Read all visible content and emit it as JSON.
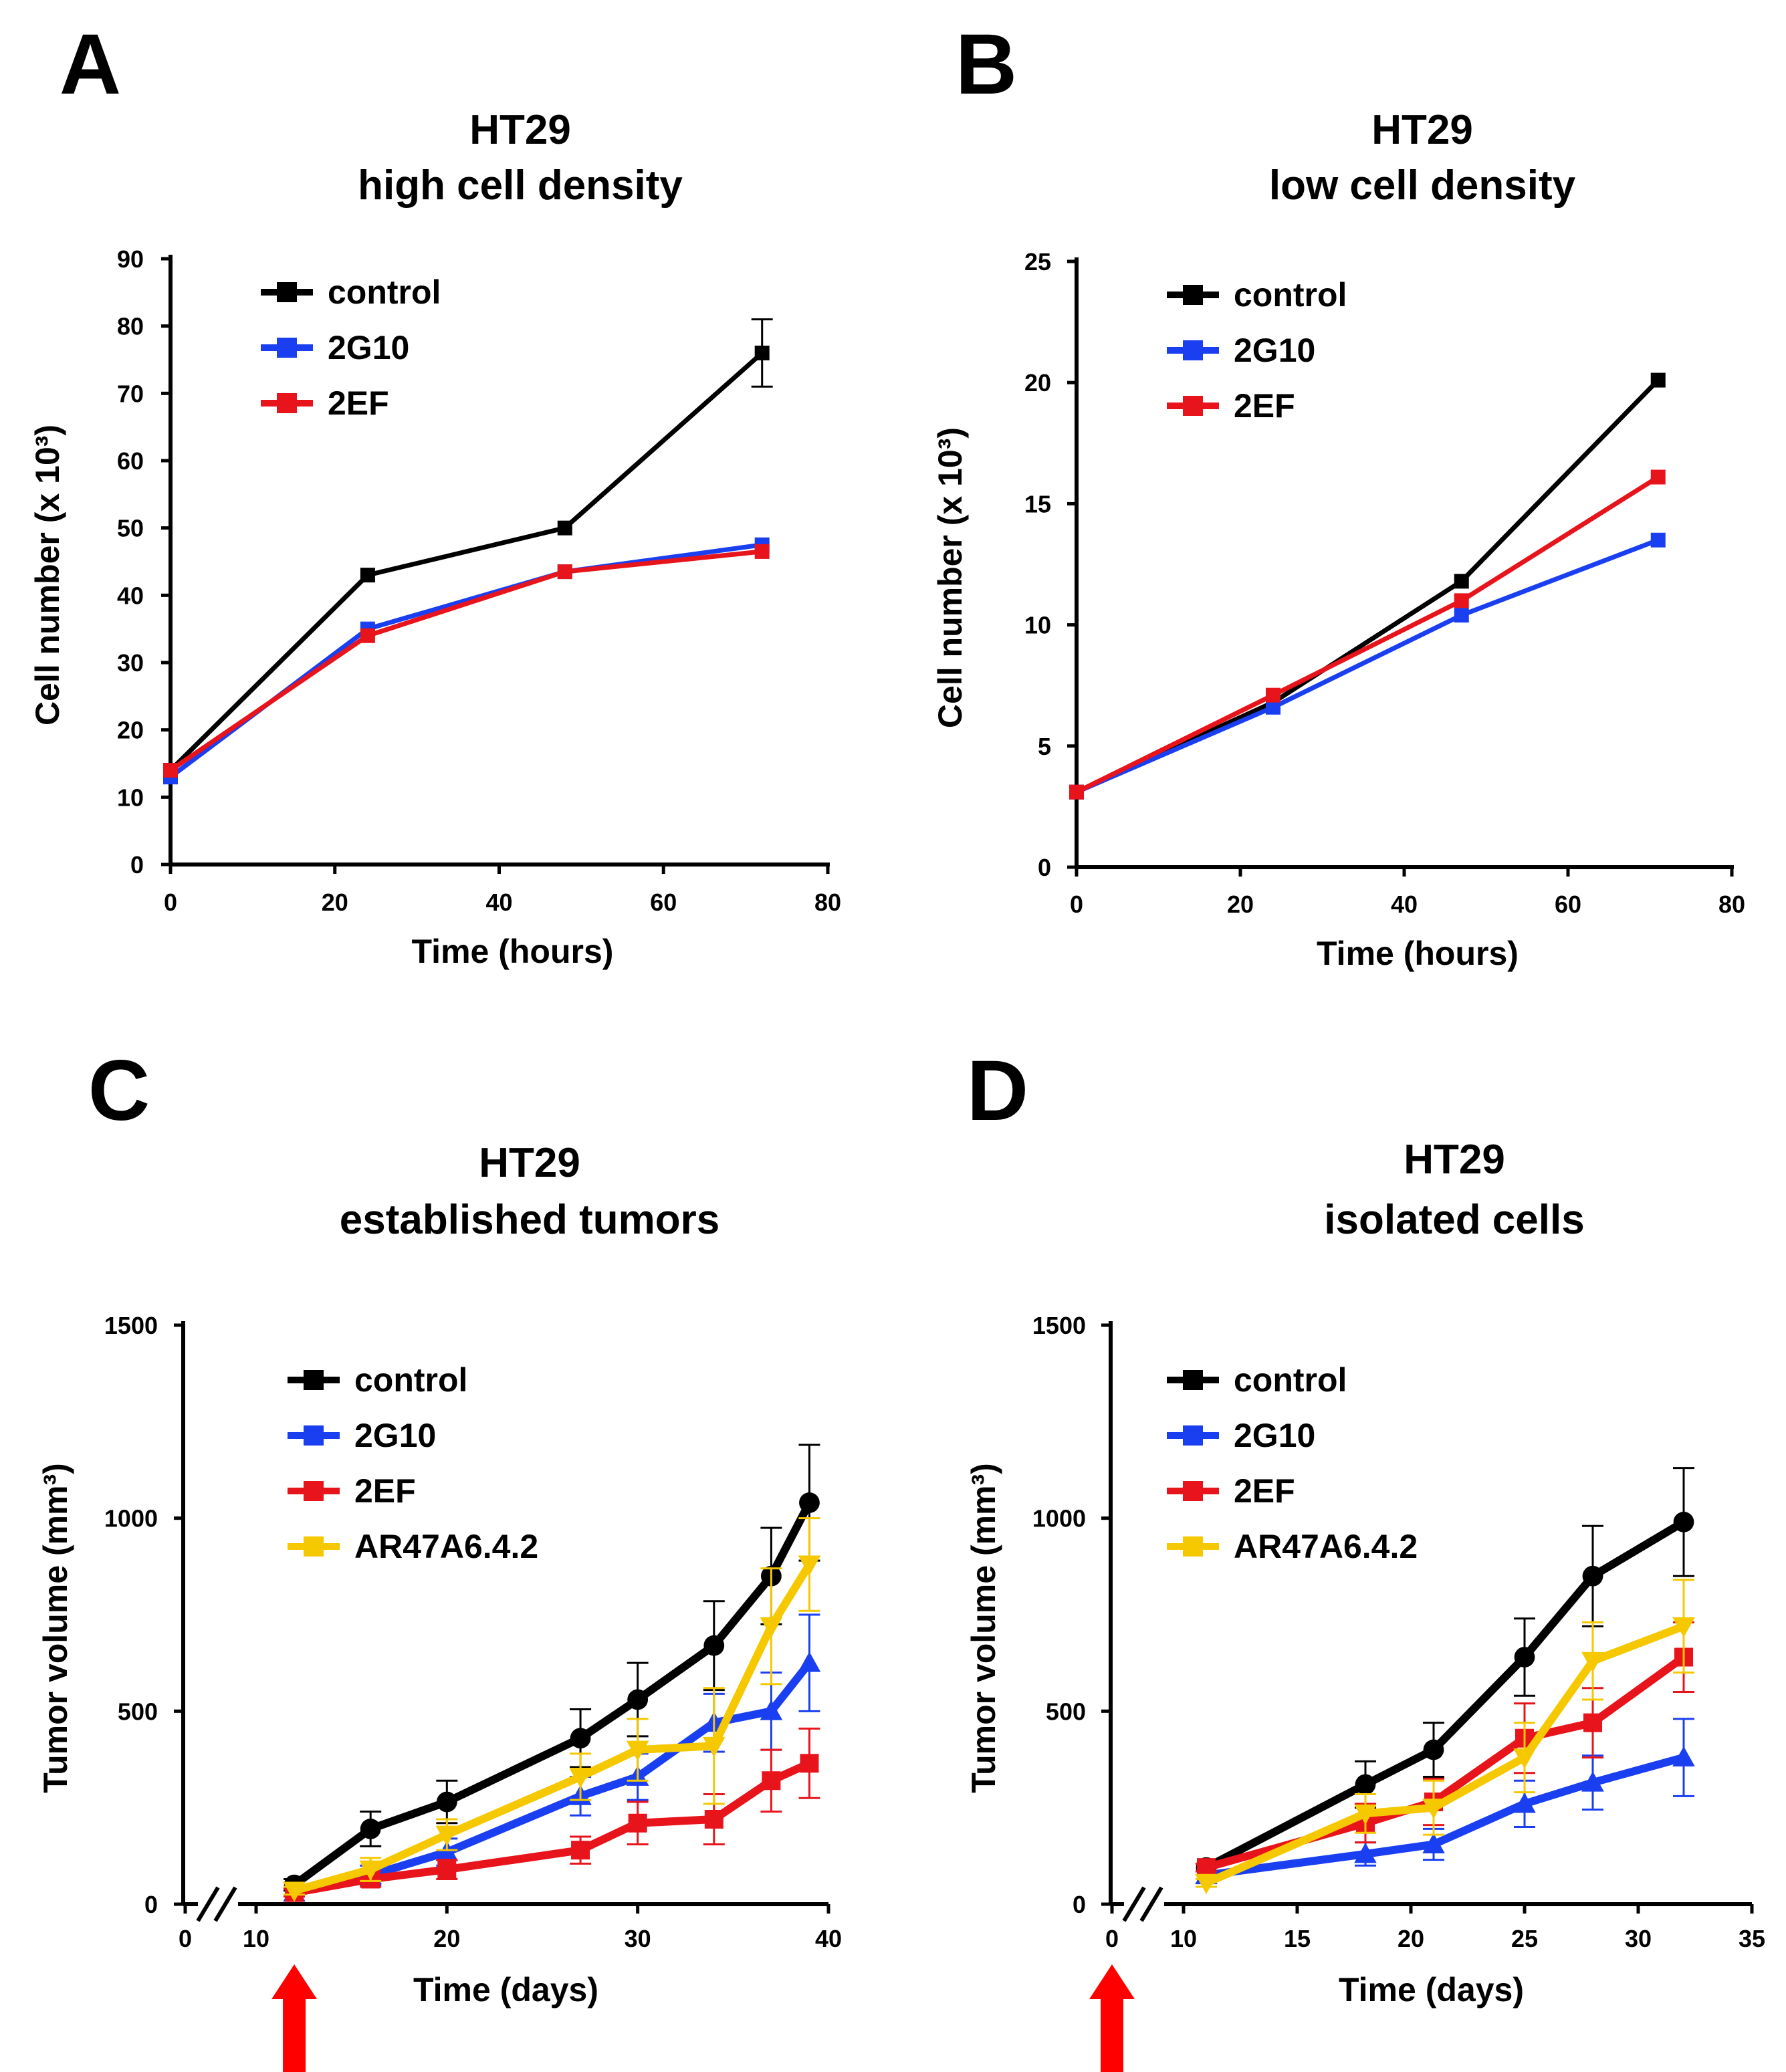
{
  "chart_data": [
    {
      "panel": "A",
      "type": "line",
      "title": "HT29",
      "subtitle": "high cell density",
      "xlabel": "Time (hours)",
      "ylabel": "Cell number (x 10³)",
      "xlim": [
        0,
        80
      ],
      "ylim": [
        0,
        90
      ],
      "xticks": [
        0,
        20,
        40,
        60,
        80
      ],
      "yticks": [
        0,
        10,
        20,
        30,
        40,
        50,
        60,
        70,
        80,
        90
      ],
      "legend": "top-left",
      "series": [
        {
          "name": "control",
          "color": "#000000",
          "marker": "square",
          "x": [
            0,
            24,
            48,
            72
          ],
          "y": [
            14,
            43,
            50,
            76
          ],
          "err": [
            0,
            0,
            0,
            5
          ]
        },
        {
          "name": "2G10",
          "color": "#1a3ff0",
          "marker": "square",
          "x": [
            0,
            24,
            48,
            72
          ],
          "y": [
            13,
            35,
            43.5,
            47.5
          ],
          "err": [
            0,
            0,
            0,
            0
          ]
        },
        {
          "name": "2EF",
          "color": "#e8141c",
          "marker": "square",
          "x": [
            0,
            24,
            48,
            72
          ],
          "y": [
            14,
            34,
            43.5,
            46.5
          ],
          "err": [
            0,
            0,
            0,
            0
          ]
        }
      ]
    },
    {
      "panel": "B",
      "type": "line",
      "title": "HT29",
      "subtitle": "low cell density",
      "xlabel": "Time (hours)",
      "ylabel": "Cell number (x 10³)",
      "xlim": [
        0,
        80
      ],
      "ylim": [
        0,
        25
      ],
      "xticks": [
        0,
        20,
        40,
        60,
        80
      ],
      "yticks": [
        0,
        5,
        10,
        15,
        20,
        25
      ],
      "legend": "top-left",
      "series": [
        {
          "name": "control",
          "color": "#000000",
          "marker": "square",
          "x": [
            0,
            24,
            47,
            71
          ],
          "y": [
            3.1,
            6.8,
            11.8,
            20.1
          ],
          "err": [
            0,
            0,
            0,
            0
          ]
        },
        {
          "name": "2G10",
          "color": "#1a3ff0",
          "marker": "square",
          "x": [
            0,
            24,
            47,
            71
          ],
          "y": [
            3.1,
            6.6,
            10.4,
            13.5
          ],
          "err": [
            0,
            0,
            0,
            0
          ]
        },
        {
          "name": "2EF",
          "color": "#e8141c",
          "marker": "square",
          "x": [
            0,
            24,
            47,
            71
          ],
          "y": [
            3.1,
            7.1,
            11.0,
            16.1
          ],
          "err": [
            0,
            0,
            0,
            0
          ]
        }
      ]
    },
    {
      "panel": "C",
      "type": "line",
      "title": "HT29",
      "subtitle": "established tumors",
      "xlabel": "Time (days)",
      "ylabel": "Tumor volume (mm³)",
      "xlim": [
        10,
        40
      ],
      "ylim": [
        0,
        1500
      ],
      "xticks": [
        10,
        20,
        30,
        40
      ],
      "xticks_broken": [
        "0"
      ],
      "yticks": [
        0,
        500,
        1000,
        1500
      ],
      "legend": "top-left",
      "arrow_at_x": 12,
      "series": [
        {
          "name": "control",
          "color": "#000000",
          "marker": "circle",
          "x": [
            12,
            16,
            20,
            27,
            30,
            34,
            37,
            39
          ],
          "y": [
            50,
            195,
            265,
            430,
            530,
            670,
            850,
            1040
          ],
          "err": [
            15,
            45,
            55,
            75,
            95,
            115,
            125,
            150
          ]
        },
        {
          "name": "2G10",
          "color": "#1a3ff0",
          "marker": "triangle",
          "x": [
            12,
            16,
            20,
            27,
            30,
            34,
            37,
            39
          ],
          "y": [
            30,
            75,
            135,
            280,
            330,
            470,
            500,
            625
          ],
          "err": [
            10,
            25,
            35,
            50,
            60,
            75,
            100,
            125
          ]
        },
        {
          "name": "2EF",
          "color": "#e8141c",
          "marker": "square",
          "x": [
            12,
            16,
            20,
            27,
            30,
            34,
            37,
            39
          ],
          "y": [
            30,
            65,
            90,
            140,
            210,
            220,
            320,
            365
          ],
          "err": [
            10,
            20,
            25,
            35,
            55,
            65,
            80,
            90
          ]
        },
        {
          "name": "AR47A6.4.2",
          "color": "#f5c800",
          "marker": "triangle-down",
          "x": [
            12,
            16,
            20,
            27,
            30,
            34,
            37,
            39
          ],
          "y": [
            35,
            90,
            180,
            330,
            400,
            410,
            720,
            880
          ],
          "err": [
            10,
            30,
            40,
            60,
            80,
            150,
            150,
            120
          ]
        }
      ]
    },
    {
      "panel": "D",
      "type": "line",
      "title": "HT29",
      "subtitle": "isolated cells",
      "xlabel": "Time (days)",
      "ylabel": "Tumor volume (mm³)",
      "xlim": [
        10,
        35
      ],
      "ylim": [
        0,
        1500
      ],
      "xticks": [
        10,
        15,
        20,
        25,
        30,
        35
      ],
      "xticks_broken": [
        "0"
      ],
      "yticks": [
        0,
        500,
        1000,
        1500
      ],
      "legend": "top-left",
      "arrow_at_x": 0,
      "series": [
        {
          "name": "control",
          "color": "#000000",
          "marker": "circle",
          "x": [
            11,
            18,
            21,
            25,
            28,
            32
          ],
          "y": [
            95,
            310,
            400,
            640,
            850,
            990
          ],
          "err": [
            10,
            60,
            70,
            100,
            130,
            140
          ]
        },
        {
          "name": "2G10",
          "color": "#1a3ff0",
          "marker": "triangle",
          "x": [
            11,
            18,
            21,
            25,
            28,
            32
          ],
          "y": [
            75,
            130,
            155,
            260,
            315,
            380
          ],
          "err": [
            10,
            30,
            40,
            60,
            70,
            100
          ]
        },
        {
          "name": "2EF",
          "color": "#e8141c",
          "marker": "square",
          "x": [
            11,
            18,
            21,
            25,
            28,
            32
          ],
          "y": [
            95,
            210,
            265,
            430,
            470,
            640
          ],
          "err": [
            10,
            50,
            60,
            90,
            90,
            90
          ]
        },
        {
          "name": "AR47A6.4.2",
          "color": "#f5c800",
          "marker": "triangle-down",
          "x": [
            11,
            18,
            21,
            25,
            28,
            32
          ],
          "y": [
            55,
            235,
            250,
            380,
            630,
            720
          ],
          "err": [
            10,
            50,
            70,
            90,
            100,
            120
          ]
        }
      ]
    }
  ]
}
